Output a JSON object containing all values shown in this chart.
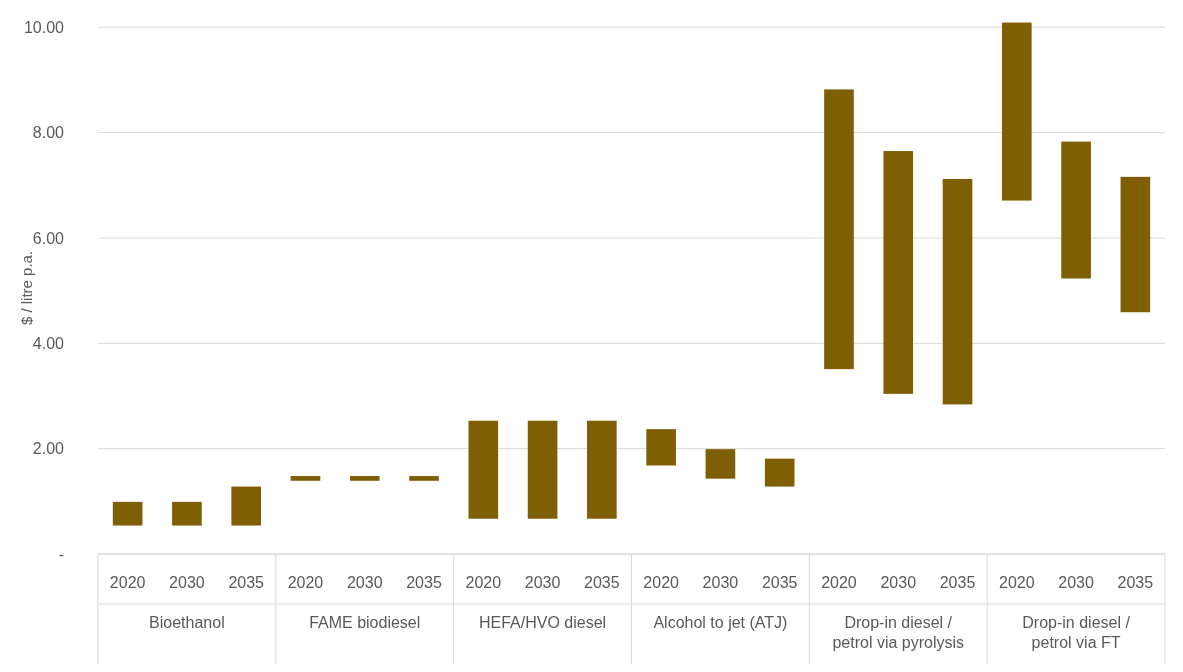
{
  "chart_data": {
    "type": "bar",
    "ylabel": "$ / litre p.a.",
    "categories": [
      "2020",
      "2030",
      "2035",
      "2020",
      "2030",
      "2035",
      "2020",
      "2030",
      "2035",
      "2020",
      "2030",
      "2035",
      "2020",
      "2030",
      "2035",
      "2020",
      "2030",
      "2035"
    ],
    "base": [
      0.54,
      0.54,
      0.54,
      1.39,
      1.39,
      1.39,
      0.67,
      0.67,
      0.67,
      1.68,
      1.43,
      1.28,
      3.51,
      3.04,
      2.84,
      6.71,
      5.23,
      4.59
    ],
    "values": [
      0.45,
      0.45,
      0.74,
      0.09,
      0.09,
      0.09,
      1.86,
      1.86,
      1.86,
      0.69,
      0.56,
      0.53,
      5.31,
      4.61,
      4.28,
      3.38,
      2.6,
      2.57
    ],
    "color": "#7f5f05",
    "ylim": [
      0,
      10.1
    ],
    "yticks": [
      {
        "value": 0,
        "label": "-"
      },
      {
        "value": 2,
        "label": "2.00"
      },
      {
        "value": 4,
        "label": "4.00"
      },
      {
        "value": 6,
        "label": "6.00"
      },
      {
        "value": 8,
        "label": "8.00"
      },
      {
        "value": 10,
        "label": "10.00"
      }
    ],
    "grid": "y",
    "annotations": [
      "Bioethanol",
      "FAME biodiesel",
      "HEFA/HVO diesel",
      "Alcohol to jet (ATJ)",
      "Drop-in diesel / petrol via pyrolysis",
      "Drop-in diesel / petrol via FT"
    ]
  }
}
